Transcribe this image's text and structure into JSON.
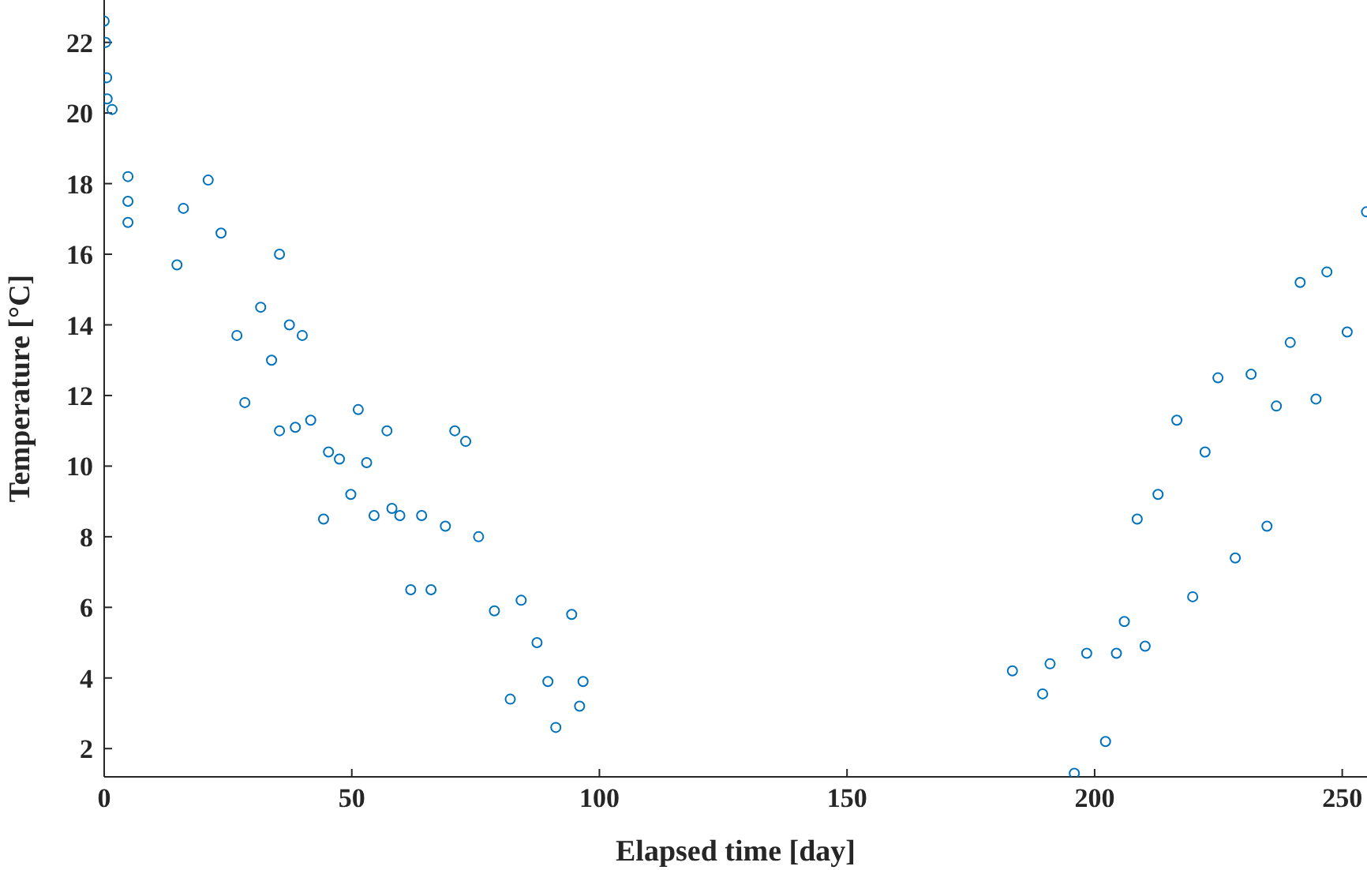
{
  "chart_data": {
    "type": "scatter",
    "xlabel": "Elapsed time [day]",
    "ylabel": "Temperature [°C]",
    "xlim": [
      0,
      255
    ],
    "ylim": [
      1.2,
      23.2
    ],
    "xticks": [
      0,
      50,
      100,
      150,
      200,
      250
    ],
    "yticks": [
      2,
      4,
      6,
      8,
      10,
      12,
      14,
      16,
      18,
      20,
      22
    ],
    "grid": false,
    "marker": "circle",
    "series": [
      {
        "color": "#0072bd",
        "x": [
          0,
          0.3,
          0.5,
          0.6,
          1.6,
          4.8,
          4.8,
          4.8,
          14.7,
          16,
          21,
          23.6,
          26.8,
          28.4,
          31.6,
          33.8,
          35.4,
          35.4,
          37.4,
          38.6,
          40,
          41.7,
          44.3,
          45.3,
          47.5,
          49.8,
          51.3,
          53,
          54.5,
          57.1,
          58.1,
          59.7,
          61.9,
          64.1,
          66,
          68.9,
          70.8,
          73,
          75.6,
          78.8,
          82,
          84.2,
          87.4,
          89.6,
          91.2,
          94.4,
          96,
          96.7,
          183.4,
          189.5,
          191,
          195.9,
          198.4,
          202.2,
          204.4,
          206,
          208.6,
          210.2,
          212.8,
          216.6,
          219.8,
          222.3,
          224.9,
          228.4,
          231.6,
          234.8,
          236.7,
          239.5,
          241.5,
          244.7,
          246.9,
          251,
          254.9
        ],
        "values": [
          22.6,
          22,
          21,
          20.4,
          20.1,
          18.2,
          17.5,
          16.9,
          15.7,
          17.3,
          18.1,
          16.6,
          13.7,
          11.8,
          14.5,
          13,
          16,
          11,
          14,
          11.1,
          13.7,
          11.3,
          8.5,
          10.4,
          10.2,
          9.2,
          11.6,
          10.1,
          8.6,
          11,
          8.8,
          8.6,
          6.5,
          8.6,
          6.5,
          8.3,
          11,
          10.7,
          8,
          5.9,
          3.4,
          6.2,
          5,
          3.9,
          2.6,
          5.8,
          3.2,
          3.9,
          4.2,
          3.55,
          4.4,
          1.3,
          4.7,
          2.2,
          4.7,
          5.6,
          8.5,
          4.9,
          9.2,
          11.3,
          6.3,
          10.4,
          12.5,
          7.4,
          12.6,
          8.3,
          11.7,
          13.5,
          15.2,
          11.9,
          15.5,
          13.8,
          17.2
        ]
      }
    ]
  }
}
